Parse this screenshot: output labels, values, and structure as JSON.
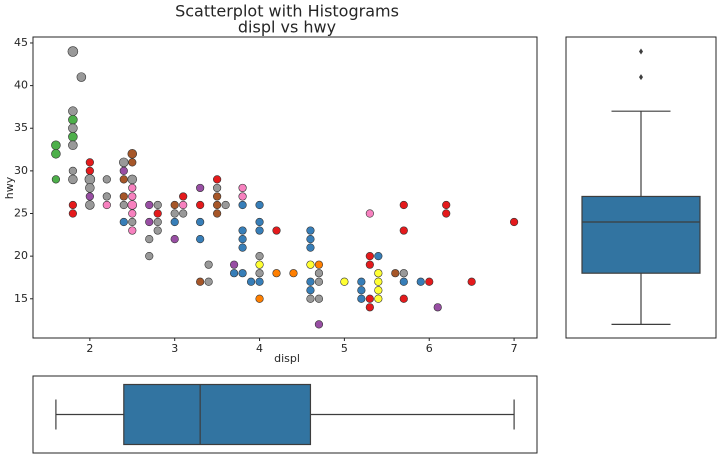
{
  "chart_data": [
    {
      "type": "scatter",
      "title": "Scatterplot with Histograms",
      "subtitle": "displ vs hwy",
      "x_label": "displ",
      "y_label": "hwy",
      "xlim": [
        1.33,
        7.27
      ],
      "ylim": [
        10.4,
        45.7
      ],
      "xticks": [
        2,
        3,
        4,
        5,
        6,
        7
      ],
      "yticks": [
        15,
        20,
        25,
        30,
        35,
        40,
        45
      ],
      "x": [
        1.6,
        1.6,
        1.6,
        1.8,
        1.9,
        1.8,
        1.8,
        1.8,
        1.8,
        1.8,
        1.8,
        1.8,
        1.8,
        1.8,
        2.0,
        2.0,
        2.0,
        2.0,
        2.0,
        2.0,
        2.2,
        2.2,
        2.2,
        2.4,
        2.4,
        2.4,
        2.4,
        2.4,
        2.4,
        2.5,
        2.5,
        2.5,
        2.5,
        2.5,
        2.5,
        2.5,
        2.5,
        2.5,
        2.7,
        2.7,
        2.7,
        2.7,
        2.8,
        2.8,
        2.8,
        2.8,
        3.0,
        3.0,
        3.0,
        3.0,
        3.1,
        3.1,
        3.1,
        3.3,
        3.3,
        3.3,
        3.3,
        3.3,
        3.4,
        3.4,
        3.5,
        3.5,
        3.5,
        3.5,
        3.5,
        3.6,
        3.7,
        3.7,
        3.8,
        3.8,
        3.8,
        3.8,
        3.8,
        3.8,
        3.8,
        3.9,
        4.0,
        4.0,
        4.0,
        4.0,
        4.0,
        4.0,
        4.0,
        4.0,
        4.2,
        4.2,
        4.4,
        4.6,
        4.6,
        4.6,
        4.6,
        4.6,
        4.6,
        4.6,
        4.7,
        4.7,
        4.7,
        4.7,
        4.7,
        5.0,
        5.2,
        5.2,
        5.2,
        5.3,
        5.3,
        5.3,
        5.3,
        5.3,
        5.4,
        5.4,
        5.4,
        5.4,
        5.4,
        5.6,
        5.7,
        5.7,
        5.7,
        5.7,
        5.7,
        5.9,
        6.0,
        6.1,
        6.2,
        6.2,
        6.5,
        7.0
      ],
      "y": [
        33,
        32,
        29,
        44,
        41,
        37,
        36,
        35,
        34,
        33,
        30,
        29,
        26,
        25,
        31,
        30,
        29,
        28,
        27,
        26,
        29,
        27,
        26,
        31,
        30,
        29,
        27,
        26,
        24,
        32,
        31,
        29,
        28,
        27,
        26,
        25,
        24,
        23,
        26,
        24,
        22,
        20,
        26,
        25,
        24,
        23,
        26,
        25,
        24,
        22,
        27,
        26,
        25,
        28,
        26,
        24,
        22,
        17,
        19,
        17,
        29,
        28,
        27,
        26,
        25,
        26,
        19,
        18,
        28,
        27,
        26,
        23,
        22,
        21,
        18,
        17,
        26,
        24,
        23,
        20,
        19,
        18,
        17,
        15,
        23,
        18,
        18,
        23,
        22,
        21,
        19,
        17,
        16,
        15,
        19,
        18,
        17,
        15,
        12,
        17,
        17,
        16,
        15,
        25,
        20,
        19,
        15,
        14,
        20,
        18,
        17,
        16,
        15,
        18,
        26,
        23,
        18,
        17,
        15,
        17,
        17,
        14,
        26,
        25,
        17,
        24
      ],
      "sizes": [
        2,
        2,
        1,
        3,
        2,
        2,
        2,
        2,
        2,
        2,
        1,
        2,
        1,
        1,
        1,
        1,
        3,
        2,
        1,
        2,
        1,
        1,
        1,
        2,
        1,
        1,
        1,
        1,
        1,
        2,
        1,
        2,
        1,
        1,
        2,
        1,
        1,
        1,
        1,
        1,
        1,
        1,
        1,
        1,
        1,
        1,
        1,
        1,
        1,
        1,
        1,
        1,
        1,
        1,
        1,
        1,
        1,
        1,
        1,
        1,
        1,
        1,
        1,
        1,
        1,
        1,
        1,
        1,
        1,
        1,
        1,
        1,
        1,
        1,
        1,
        1,
        1,
        1,
        1,
        1,
        1,
        1,
        1,
        1,
        1,
        1,
        1,
        1,
        1,
        1,
        1,
        1,
        1,
        1,
        1,
        1,
        1,
        1,
        1,
        1,
        1,
        1,
        1,
        1,
        1,
        1,
        1,
        1,
        1,
        1,
        1,
        1,
        1,
        1,
        1,
        1,
        1,
        1,
        1,
        1,
        1,
        1,
        1,
        1,
        1,
        1
      ],
      "colors": [
        "#4daf4a",
        "#4daf4a",
        "#4daf4a",
        "#999999",
        "#999999",
        "#999999",
        "#4daf4a",
        "#999999",
        "#4daf4a",
        "#999999",
        "#999999",
        "#999999",
        "#e41a1c",
        "#e41a1c",
        "#e41a1c",
        "#e41a1c",
        "#999999",
        "#999999",
        "#984ea3",
        "#999999",
        "#999999",
        "#999999",
        "#f781bf",
        "#999999",
        "#984ea3",
        "#a65628",
        "#a65628",
        "#999999",
        "#377eb8",
        "#a65628",
        "#a65628",
        "#999999",
        "#f781bf",
        "#f781bf",
        "#f781bf",
        "#f781bf",
        "#999999",
        "#f781bf",
        "#984ea3",
        "#984ea3",
        "#999999",
        "#999999",
        "#999999",
        "#e41a1c",
        "#999999",
        "#999999",
        "#a65628",
        "#999999",
        "#377eb8",
        "#984ea3",
        "#e41a1c",
        "#f781bf",
        "#999999",
        "#984ea3",
        "#e41a1c",
        "#377eb8",
        "#377eb8",
        "#a65628",
        "#999999",
        "#999999",
        "#e41a1c",
        "#999999",
        "#a65628",
        "#a65628",
        "#a65628",
        "#999999",
        "#984ea3",
        "#377eb8",
        "#f781bf",
        "#f781bf",
        "#377eb8",
        "#377eb8",
        "#377eb8",
        "#377eb8",
        "#377eb8",
        "#377eb8",
        "#377eb8",
        "#377eb8",
        "#377eb8",
        "#999999",
        "#ffff33",
        "#999999",
        "#377eb8",
        "#ff7f00",
        "#e41a1c",
        "#ff7f00",
        "#ff7f00",
        "#377eb8",
        "#377eb8",
        "#377eb8",
        "#ffff33",
        "#377eb8",
        "#377eb8",
        "#999999",
        "#ff7f00",
        "#999999",
        "#999999",
        "#999999",
        "#984ea3",
        "#ffff33",
        "#377eb8",
        "#377eb8",
        "#377eb8",
        "#f781bf",
        "#e41a1c",
        "#e41a1c",
        "#e41a1c",
        "#e41a1c",
        "#377eb8",
        "#ffff33",
        "#ffff33",
        "#ffff33",
        "#ffff33",
        "#a65628",
        "#e41a1c",
        "#e41a1c",
        "#999999",
        "#377eb8",
        "#e41a1c",
        "#377eb8",
        "#e41a1c",
        "#984ea3",
        "#e41a1c",
        "#e41a1c",
        "#e41a1c",
        "#e41a1c"
      ]
    },
    {
      "type": "box",
      "orientation": "vertical",
      "color": "#3274a1",
      "ylim": [
        10.4,
        45.7
      ],
      "whisker_low": 12,
      "q1": 18,
      "median": 24,
      "q3": 27,
      "whisker_high": 37,
      "outliers": [
        41,
        44
      ]
    },
    {
      "type": "box",
      "orientation": "horizontal",
      "color": "#3274a1",
      "xlim": [
        1.33,
        7.27
      ],
      "whisker_low": 1.6,
      "q1": 2.4,
      "median": 3.3,
      "q3": 4.6,
      "whisker_high": 7.0,
      "outliers": []
    }
  ]
}
